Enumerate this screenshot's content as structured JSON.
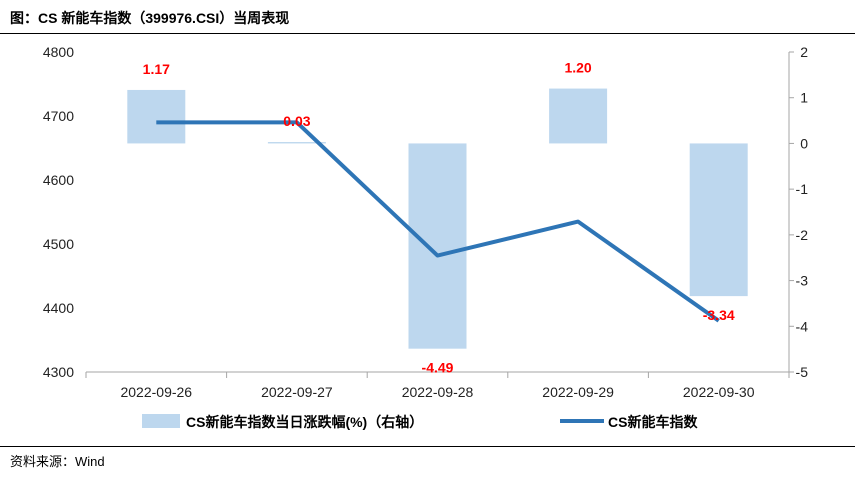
{
  "header": {
    "title": "图：CS 新能车指数（399976.CSI）当周表现"
  },
  "footer": {
    "source": "资料来源：Wind"
  },
  "chart_data": {
    "type": "bar+line",
    "categories": [
      "2022-09-26",
      "2022-09-27",
      "2022-09-28",
      "2022-09-29",
      "2022-09-30"
    ],
    "bar_series": {
      "name": "CS新能车指数当日涨跌幅(%)（右轴）",
      "axis": "right",
      "values": [
        1.17,
        0.03,
        -4.49,
        1.2,
        -3.34
      ],
      "labels": [
        "1.17",
        "0.03",
        "-4.49",
        "1.20",
        "-3.34"
      ],
      "color": "#bdd7ee"
    },
    "line_series": {
      "name": "CS新能车指数",
      "axis": "left",
      "values": [
        4690,
        4690,
        4482,
        4535,
        4380
      ],
      "color": "#2e75b6"
    },
    "left_axis": {
      "ylim": [
        4300,
        4800
      ],
      "ticks": [
        "4300",
        "4400",
        "4500",
        "4600",
        "4700",
        "4800"
      ]
    },
    "right_axis": {
      "ylim": [
        -5,
        2
      ],
      "ticks": [
        "-5",
        "-4",
        "-3",
        "-2",
        "-1",
        "0",
        "1",
        "2"
      ]
    },
    "label_color": "#ff0000",
    "legend_position": "bottom"
  }
}
